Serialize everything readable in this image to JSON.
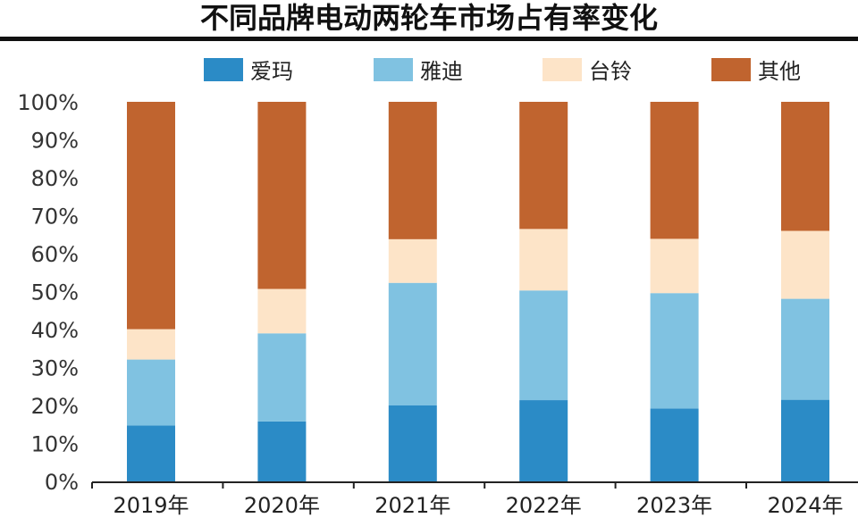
{
  "chart_data": {
    "type": "bar",
    "stacked": true,
    "title": "不同品牌电动两轮车市场占有率变化",
    "xlabel": "",
    "ylabel": "",
    "ylim": [
      0,
      100
    ],
    "y_ticks": [
      "0%",
      "10%",
      "20%",
      "30%",
      "40%",
      "50%",
      "60%",
      "70%",
      "80%",
      "90%",
      "100%"
    ],
    "categories": [
      "2019年",
      "2020年",
      "2021年",
      "2022年",
      "2023年",
      "2024年"
    ],
    "legend_position": "top",
    "grid": false,
    "series": [
      {
        "name": "爱玛",
        "color": "#2b8bc6",
        "values": [
          14.7,
          15.8,
          20.0,
          21.4,
          19.2,
          21.5
        ]
      },
      {
        "name": "雅迪",
        "color": "#80c2e1",
        "values": [
          17.4,
          23.2,
          32.3,
          28.9,
          30.4,
          26.6
        ]
      },
      {
        "name": "台铃",
        "color": "#fde4c8",
        "values": [
          8.0,
          11.7,
          11.5,
          16.2,
          14.3,
          17.9
        ]
      },
      {
        "name": "其他",
        "color": "#c0642f",
        "values": [
          59.9,
          49.3,
          36.2,
          33.5,
          36.1,
          34.0
        ]
      }
    ]
  }
}
